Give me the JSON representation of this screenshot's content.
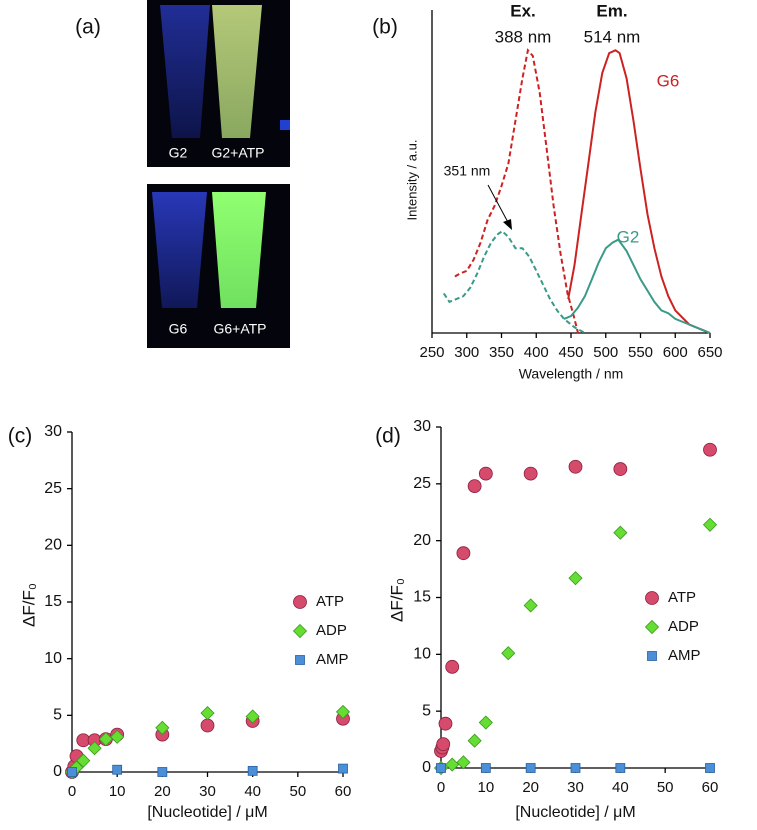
{
  "panel_labels": [
    "(a)",
    "(b)",
    "(c)",
    "(d)"
  ],
  "photos": {
    "top": [
      "G2",
      "G2+ATP"
    ],
    "bottom": [
      "G6",
      "G6+ATP"
    ]
  },
  "chart_data": [
    {
      "type": "line",
      "x_label": "Wavelength / nm",
      "y_label": "Intensity / a.u.",
      "xlim": [
        250,
        650
      ],
      "xticks": [
        250,
        300,
        350,
        400,
        450,
        500,
        550,
        600,
        650
      ],
      "ylim": [
        0,
        1.1
      ],
      "annotations": [
        "Ex.",
        "388 nm",
        "Em.",
        "514 nm",
        "351 nm"
      ],
      "series": [
        {
          "name": "G6",
          "color": "#cc2222",
          "excitation": {
            "line_style": "dashed",
            "x": [
              283,
              290,
              300,
              310,
              320,
              330,
              340,
              350,
              360,
              370,
              380,
              388,
              395,
              405,
              415,
              425,
              435,
              445,
              455,
              460
            ],
            "values": [
              0.2,
              0.21,
              0.22,
              0.26,
              0.32,
              0.4,
              0.45,
              0.52,
              0.6,
              0.75,
              0.9,
              1.0,
              0.98,
              0.85,
              0.65,
              0.45,
              0.28,
              0.14,
              0.05,
              0.0
            ]
          },
          "emission": {
            "line_style": "solid",
            "x": [
              446,
              455,
              465,
              475,
              485,
              495,
              505,
              514,
              520,
              530,
              540,
              550,
              560,
              570,
              580,
              590,
              600,
              620,
              640,
              650
            ],
            "values": [
              0.12,
              0.24,
              0.42,
              0.6,
              0.78,
              0.92,
              0.99,
              1.0,
              0.99,
              0.9,
              0.75,
              0.58,
              0.42,
              0.3,
              0.2,
              0.13,
              0.08,
              0.03,
              0.01,
              0.0
            ]
          }
        },
        {
          "name": "G2",
          "color": "#3a9a88",
          "excitation": {
            "line_style": "dashed",
            "x": [
              267,
              275,
              285,
              295,
              305,
              315,
              325,
              335,
              345,
              351,
              360,
              370,
              380,
              390,
              400,
              410,
              420,
              430,
              440,
              455,
              470
            ],
            "values": [
              0.14,
              0.11,
              0.12,
              0.13,
              0.16,
              0.21,
              0.27,
              0.32,
              0.35,
              0.36,
              0.34,
              0.3,
              0.3,
              0.27,
              0.22,
              0.17,
              0.12,
              0.08,
              0.05,
              0.02,
              0.0
            ]
          },
          "emission": {
            "line_style": "solid",
            "x": [
              440,
              450,
              460,
              470,
              480,
              490,
              500,
              510,
              518,
              530,
              540,
              550,
              560,
              570,
              580,
              590,
              600,
              620,
              640,
              650
            ],
            "values": [
              0.05,
              0.06,
              0.09,
              0.13,
              0.19,
              0.25,
              0.3,
              0.32,
              0.33,
              0.29,
              0.24,
              0.19,
              0.15,
              0.11,
              0.08,
              0.07,
              0.05,
              0.03,
              0.01,
              0.0
            ]
          }
        }
      ]
    },
    {
      "type": "scatter",
      "x_label": "[Nucleotide] / μM",
      "y_label": "ΔF/F₀",
      "xlim": [
        0,
        60
      ],
      "xticks": [
        0,
        10,
        20,
        30,
        40,
        50,
        60
      ],
      "ylim": [
        0,
        30
      ],
      "yticks": [
        0,
        5,
        10,
        15,
        20,
        25,
        30
      ],
      "series": [
        {
          "name": "ATP",
          "color": "#d64a6c",
          "marker": "circle",
          "x": [
            0,
            0.5,
            1,
            2.5,
            5,
            7.5,
            10,
            20,
            30,
            40,
            60
          ],
          "values": [
            0,
            0.5,
            1.4,
            2.8,
            2.8,
            2.9,
            3.3,
            3.3,
            4.1,
            4.5,
            4.7
          ]
        },
        {
          "name": "ADP",
          "color": "#66dd33",
          "marker": "diamond",
          "x": [
            0,
            1,
            2.5,
            5,
            7.5,
            10,
            20,
            30,
            40,
            60
          ],
          "values": [
            0,
            0.4,
            1,
            2.1,
            2.9,
            3.1,
            3.9,
            5.2,
            4.9,
            5.3
          ]
        },
        {
          "name": "AMP",
          "color": "#4a8fd8",
          "marker": "square",
          "x": [
            0,
            10,
            20,
            40,
            60
          ],
          "values": [
            0,
            0.2,
            0,
            0.1,
            0.3
          ]
        }
      ]
    },
    {
      "type": "scatter",
      "x_label": "[Nucleotide] / μM",
      "y_label": "ΔF/F₀",
      "xlim": [
        0,
        60
      ],
      "xticks": [
        0,
        10,
        20,
        30,
        40,
        50,
        60
      ],
      "ylim": [
        0,
        30
      ],
      "yticks": [
        0,
        5,
        10,
        15,
        20,
        25,
        30
      ],
      "series": [
        {
          "name": "ATP",
          "color": "#d64a6c",
          "marker": "circle",
          "x": [
            0,
            0.3,
            0.5,
            1,
            2.5,
            5,
            7.5,
            10,
            20,
            30,
            40,
            60
          ],
          "values": [
            1.5,
            1.8,
            2.1,
            3.9,
            8.9,
            18.9,
            24.8,
            25.9,
            25.9,
            26.5,
            26.3,
            28.0
          ]
        },
        {
          "name": "ADP",
          "color": "#66dd33",
          "marker": "diamond",
          "x": [
            0,
            2.5,
            5,
            7.5,
            10,
            15,
            20,
            30,
            40,
            60
          ],
          "values": [
            0,
            0.3,
            0.5,
            2.4,
            4.0,
            10.1,
            14.3,
            16.7,
            20.7,
            21.4
          ]
        },
        {
          "name": "AMP",
          "color": "#4a8fd8",
          "marker": "square",
          "x": [
            0,
            10,
            20,
            30,
            40,
            60
          ],
          "values": [
            0,
            0,
            0,
            0,
            0,
            0
          ]
        }
      ]
    }
  ]
}
